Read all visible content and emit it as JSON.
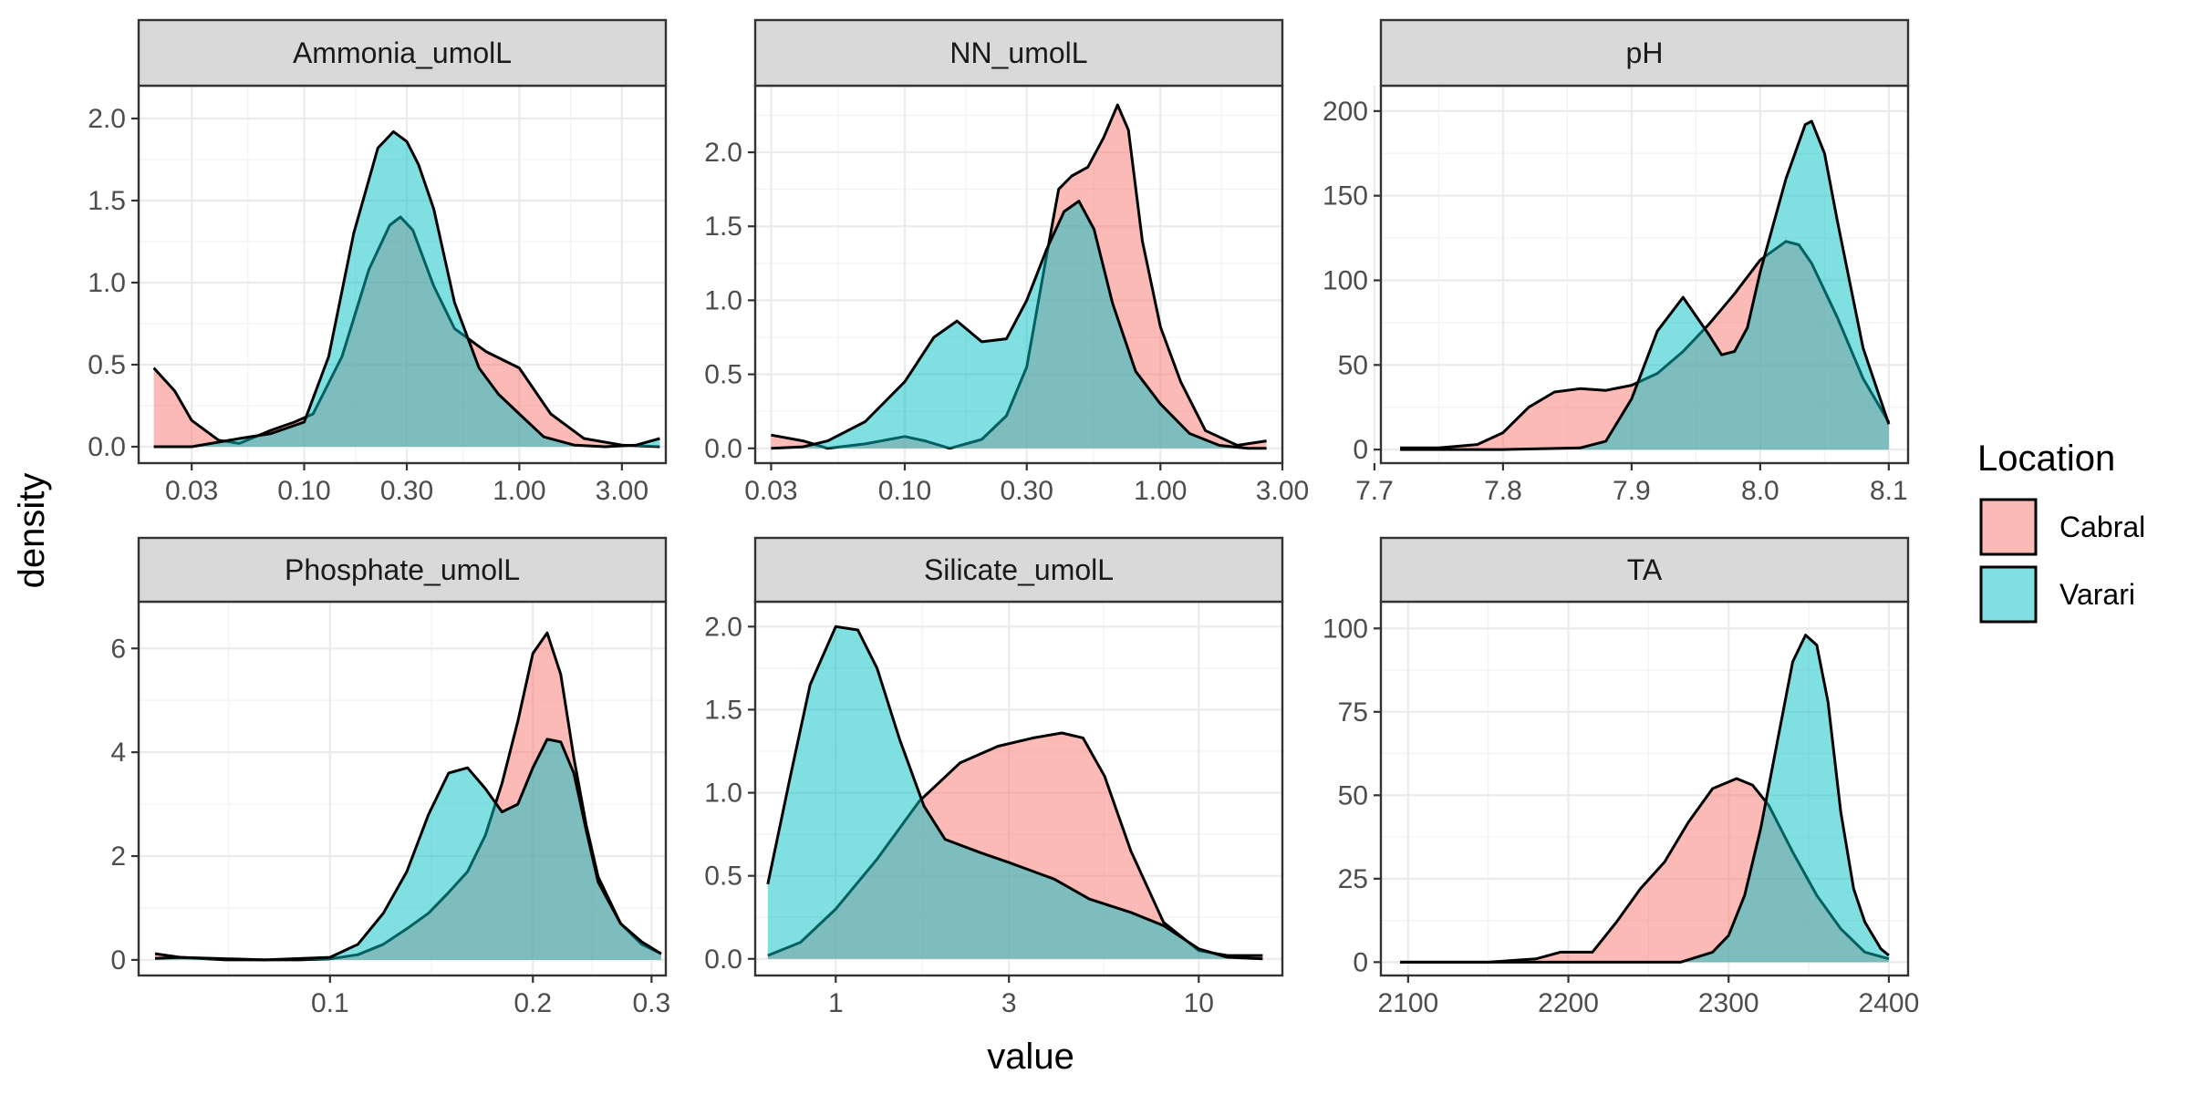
{
  "xlabel": "value",
  "ylabel": "density",
  "legend": {
    "title": "Location",
    "position": "right",
    "entries": [
      {
        "name": "Cabral",
        "color": "#F8766D"
      },
      {
        "name": "Varari",
        "color": "#00BFC4"
      }
    ]
  },
  "chart_data": [
    {
      "type": "area",
      "title": "Ammonia_umolL",
      "x_scale": "log10",
      "xlim": [
        0.017,
        4.8
      ],
      "ylim": [
        -0.1,
        2.2
      ],
      "x_ticks": [
        0.03,
        0.1,
        0.3,
        1.0,
        3.0
      ],
      "x_tick_labels": [
        "0.03",
        "0.10",
        "0.30",
        "1.00",
        "3.00"
      ],
      "y_ticks": [
        0.0,
        0.5,
        1.0,
        1.5,
        2.0
      ],
      "y_tick_labels": [
        "0.0",
        "0.5",
        "1.0",
        "1.5",
        "2.0"
      ],
      "grid": true,
      "series": [
        {
          "name": "Cabral",
          "x": [
            0.02,
            0.025,
            0.03,
            0.04,
            0.05,
            0.07,
            0.09,
            0.11,
            0.15,
            0.2,
            0.25,
            0.28,
            0.32,
            0.4,
            0.5,
            0.7,
            1.0,
            1.4,
            2.0,
            3.0,
            4.5
          ],
          "y": [
            0.48,
            0.34,
            0.16,
            0.04,
            0.02,
            0.1,
            0.15,
            0.2,
            0.55,
            1.08,
            1.35,
            1.4,
            1.32,
            0.98,
            0.72,
            0.58,
            0.48,
            0.2,
            0.05,
            0.01,
            0.0
          ]
        },
        {
          "name": "Varari",
          "x": [
            0.02,
            0.03,
            0.05,
            0.07,
            0.1,
            0.13,
            0.17,
            0.22,
            0.26,
            0.3,
            0.34,
            0.4,
            0.5,
            0.65,
            0.8,
            1.0,
            1.3,
            1.8,
            2.5,
            3.5,
            4.5
          ],
          "y": [
            0.0,
            0.0,
            0.05,
            0.08,
            0.15,
            0.55,
            1.3,
            1.82,
            1.92,
            1.86,
            1.72,
            1.45,
            0.88,
            0.48,
            0.32,
            0.2,
            0.06,
            0.01,
            0.0,
            0.01,
            0.05
          ]
        }
      ]
    },
    {
      "type": "area",
      "title": "NN_umolL",
      "x_scale": "log10",
      "xlim": [
        0.026,
        3.0
      ],
      "ylim": [
        -0.1,
        2.45
      ],
      "x_ticks": [
        0.03,
        0.1,
        0.3,
        1.0,
        3.0
      ],
      "x_tick_labels": [
        "0.03",
        "0.10",
        "0.30",
        "1.00",
        "3.00"
      ],
      "y_ticks": [
        0.0,
        0.5,
        1.0,
        1.5,
        2.0
      ],
      "y_tick_labels": [
        "0.0",
        "0.5",
        "1.0",
        "1.5",
        "2.0"
      ],
      "grid": true,
      "series": [
        {
          "name": "Cabral",
          "x": [
            0.03,
            0.04,
            0.05,
            0.07,
            0.1,
            0.12,
            0.15,
            0.2,
            0.25,
            0.3,
            0.35,
            0.4,
            0.45,
            0.52,
            0.6,
            0.68,
            0.75,
            0.85,
            1.0,
            1.2,
            1.5,
            2.0,
            2.6
          ],
          "y": [
            0.09,
            0.05,
            0.0,
            0.03,
            0.08,
            0.05,
            0.0,
            0.06,
            0.22,
            0.55,
            1.2,
            1.75,
            1.84,
            1.9,
            2.1,
            2.32,
            2.15,
            1.4,
            0.82,
            0.45,
            0.12,
            0.02,
            0.05
          ]
        },
        {
          "name": "Varari",
          "x": [
            0.03,
            0.04,
            0.05,
            0.07,
            0.1,
            0.13,
            0.16,
            0.2,
            0.25,
            0.3,
            0.36,
            0.42,
            0.48,
            0.55,
            0.65,
            0.8,
            1.0,
            1.3,
            1.7,
            2.2,
            2.6
          ],
          "y": [
            0.0,
            0.01,
            0.05,
            0.18,
            0.45,
            0.75,
            0.86,
            0.72,
            0.74,
            1.0,
            1.35,
            1.6,
            1.67,
            1.48,
            0.98,
            0.52,
            0.3,
            0.1,
            0.02,
            0.0,
            0.0
          ]
        }
      ]
    },
    {
      "type": "area",
      "title": "pH",
      "x_scale": "linear",
      "xlim": [
        7.705,
        8.115
      ],
      "ylim": [
        -8,
        215
      ],
      "x_ticks": [
        7.7,
        7.8,
        7.9,
        8.0,
        8.1
      ],
      "x_tick_labels": [
        "7.7",
        "7.8",
        "7.9",
        "8.0",
        "8.1"
      ],
      "y_ticks": [
        0,
        50,
        100,
        150,
        200
      ],
      "y_tick_labels": [
        "0",
        "50",
        "100",
        "150",
        "200"
      ],
      "grid": true,
      "series": [
        {
          "name": "Cabral",
          "x": [
            7.72,
            7.75,
            7.78,
            7.8,
            7.82,
            7.84,
            7.86,
            7.88,
            7.9,
            7.92,
            7.94,
            7.96,
            7.98,
            8.0,
            8.02,
            8.03,
            8.04,
            8.06,
            8.08,
            8.1
          ],
          "y": [
            1,
            1,
            3,
            10,
            25,
            34,
            36,
            35,
            38,
            45,
            58,
            74,
            92,
            112,
            123,
            121,
            110,
            78,
            42,
            16
          ]
        },
        {
          "name": "Varari",
          "x": [
            7.72,
            7.8,
            7.86,
            7.88,
            7.9,
            7.92,
            7.94,
            7.96,
            7.97,
            7.98,
            7.99,
            8.0,
            8.02,
            8.035,
            8.04,
            8.05,
            8.06,
            8.08,
            8.1
          ],
          "y": [
            0,
            0,
            1,
            5,
            30,
            70,
            90,
            68,
            56,
            58,
            72,
            105,
            160,
            192,
            194,
            175,
            135,
            60,
            15
          ]
        }
      ]
    },
    {
      "type": "area",
      "title": "Phosphate_umolL",
      "x_scale": "log10",
      "xlim": [
        0.052,
        0.315
      ],
      "ylim": [
        -0.3,
        6.9
      ],
      "x_ticks": [
        0.1,
        0.2,
        0.3
      ],
      "x_tick_labels": [
        "0.1",
        "0.2",
        "0.3"
      ],
      "y_ticks": [
        0,
        2,
        4,
        6
      ],
      "y_tick_labels": [
        "0",
        "2",
        "4",
        "6"
      ],
      "grid": true,
      "series": [
        {
          "name": "Cabral",
          "x": [
            0.055,
            0.06,
            0.07,
            0.08,
            0.09,
            0.1,
            0.11,
            0.12,
            0.13,
            0.14,
            0.15,
            0.16,
            0.17,
            0.18,
            0.19,
            0.2,
            0.21,
            0.22,
            0.23,
            0.24,
            0.25,
            0.27,
            0.29,
            0.31
          ],
          "y": [
            0.12,
            0.05,
            0.0,
            0.0,
            0.0,
            0.02,
            0.1,
            0.3,
            0.6,
            0.9,
            1.3,
            1.7,
            2.4,
            3.4,
            4.6,
            5.9,
            6.3,
            5.5,
            3.9,
            2.6,
            1.6,
            0.7,
            0.3,
            0.12
          ]
        },
        {
          "name": "Varari",
          "x": [
            0.055,
            0.06,
            0.08,
            0.1,
            0.11,
            0.12,
            0.13,
            0.14,
            0.15,
            0.16,
            0.17,
            0.18,
            0.19,
            0.2,
            0.21,
            0.22,
            0.23,
            0.24,
            0.25,
            0.27,
            0.29,
            0.31
          ],
          "y": [
            0.03,
            0.05,
            0.0,
            0.05,
            0.3,
            0.9,
            1.7,
            2.8,
            3.6,
            3.7,
            3.3,
            2.85,
            3.0,
            3.7,
            4.25,
            4.2,
            3.6,
            2.5,
            1.5,
            0.7,
            0.35,
            0.12
          ]
        }
      ]
    },
    {
      "type": "area",
      "title": "Silicate_umolL",
      "x_scale": "log10",
      "xlim": [
        0.6,
        17
      ],
      "ylim": [
        -0.1,
        2.15
      ],
      "x_ticks": [
        1,
        3,
        10
      ],
      "x_tick_labels": [
        "1",
        "3",
        "10"
      ],
      "y_ticks": [
        0.0,
        0.5,
        1.0,
        1.5,
        2.0
      ],
      "y_tick_labels": [
        "0.0",
        "0.5",
        "1.0",
        "1.5",
        "2.0"
      ],
      "grid": true,
      "series": [
        {
          "name": "Cabral",
          "x": [
            0.65,
            0.8,
            1.0,
            1.3,
            1.7,
            2.2,
            2.8,
            3.5,
            4.2,
            4.8,
            5.5,
            6.5,
            8.0,
            10.0,
            12.0,
            15.0
          ],
          "y": [
            0.02,
            0.1,
            0.3,
            0.6,
            0.95,
            1.18,
            1.28,
            1.33,
            1.36,
            1.33,
            1.1,
            0.65,
            0.22,
            0.05,
            0.02,
            0.02
          ]
        },
        {
          "name": "Varari",
          "x": [
            0.65,
            0.75,
            0.85,
            1.0,
            1.15,
            1.3,
            1.5,
            1.75,
            2.0,
            2.5,
            3.0,
            4.0,
            5.0,
            6.5,
            8.0,
            10.0,
            12.0,
            15.0
          ],
          "y": [
            0.45,
            1.1,
            1.65,
            2.0,
            1.98,
            1.75,
            1.32,
            0.92,
            0.72,
            0.64,
            0.58,
            0.48,
            0.36,
            0.28,
            0.2,
            0.06,
            0.01,
            0.0
          ]
        }
      ]
    },
    {
      "type": "area",
      "title": "TA",
      "x_scale": "linear",
      "xlim": [
        2083,
        2412
      ],
      "ylim": [
        -4,
        108
      ],
      "x_ticks": [
        2100,
        2200,
        2300,
        2400
      ],
      "x_tick_labels": [
        "2100",
        "2200",
        "2300",
        "2400"
      ],
      "y_ticks": [
        0,
        25,
        50,
        75,
        100
      ],
      "y_tick_labels": [
        "0",
        "25",
        "50",
        "75",
        "100"
      ],
      "grid": true,
      "series": [
        {
          "name": "Cabral",
          "x": [
            2095,
            2150,
            2180,
            2195,
            2205,
            2215,
            2230,
            2245,
            2260,
            2275,
            2290,
            2305,
            2315,
            2325,
            2340,
            2355,
            2370,
            2385,
            2400
          ],
          "y": [
            0,
            0,
            1,
            3,
            3,
            3,
            12,
            22,
            30,
            42,
            52,
            55,
            53,
            47,
            33,
            20,
            10,
            3,
            1
          ]
        },
        {
          "name": "Varari",
          "x": [
            2095,
            2200,
            2270,
            2290,
            2300,
            2310,
            2320,
            2330,
            2340,
            2348,
            2355,
            2362,
            2370,
            2378,
            2385,
            2395,
            2400
          ],
          "y": [
            0,
            0,
            0,
            3,
            8,
            20,
            40,
            65,
            90,
            98,
            95,
            78,
            45,
            22,
            12,
            4,
            2
          ]
        }
      ]
    }
  ]
}
